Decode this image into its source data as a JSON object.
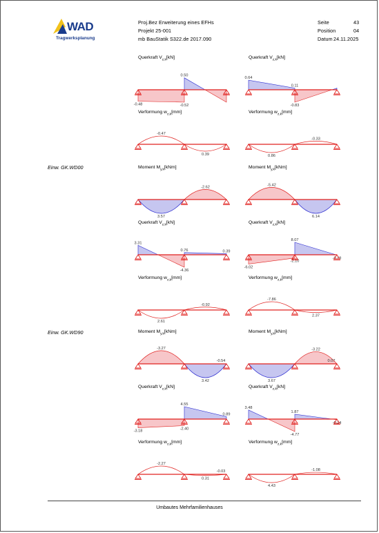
{
  "logo": {
    "name": "WAD",
    "subtitle": "Tragwerksplanung"
  },
  "header": {
    "line1": "Proj.Bez Erweiterung eines EFHs",
    "line2": "Projekt  25-001",
    "line3": "mb BauStatik S322.de  2017.090",
    "seite_label": "Seite",
    "seite_value": "43",
    "position_label": "Position",
    "position_value": "04",
    "datum_label": "Datum",
    "datum_value": "24.11.2025"
  },
  "sections": [
    {
      "label": "Einw. GK.WD00"
    },
    {
      "label": "Einw. GK.WD90"
    }
  ],
  "diagrams": [
    {
      "title": "Querkraft V",
      "sub": "z,k",
      "unit": "[kN]",
      "kind": "shear",
      "values": [
        -0.48,
        0.5,
        -0.52
      ]
    },
    {
      "title": "Querkraft V",
      "sub": "z,k",
      "unit": "[kN]",
      "kind": "shear",
      "values": [
        0.64,
        -0.83,
        0.11
      ]
    },
    {
      "title": "Verformung w",
      "sub": "z,k",
      "unit": "[mm]",
      "kind": "deflect",
      "values": [
        -0.47,
        0.39
      ]
    },
    {
      "title": "Verformung w",
      "sub": "z,k",
      "unit": "[mm]",
      "kind": "deflect",
      "values": [
        0.86,
        -0.33
      ]
    },
    {
      "title": "Moment M",
      "sub": "y,k",
      "unit": "[kNm]",
      "kind": "moment",
      "values": [
        3.57,
        -2.62
      ]
    },
    {
      "title": "Moment M",
      "sub": "y,k",
      "unit": "[kNm]",
      "kind": "moment",
      "values": [
        -5.42,
        6.14
      ]
    },
    {
      "title": "Querkraft V",
      "sub": "z,k",
      "unit": "[kN]",
      "kind": "shear",
      "values": [
        3.31,
        0.76,
        -4.36,
        0.39
      ]
    },
    {
      "title": "Querkraft V",
      "sub": "z,k",
      "unit": "[kN]",
      "kind": "shear",
      "values": [
        -6.02,
        8.07,
        -2.1,
        -0.19
      ]
    },
    {
      "title": "Verformung w",
      "sub": "z,k",
      "unit": "[mm]",
      "kind": "deflect",
      "values": [
        2.61,
        -0.92
      ]
    },
    {
      "title": "Verformung w",
      "sub": "z,k",
      "unit": "[mm]",
      "kind": "deflect",
      "values": [
        -7.86,
        2.37
      ]
    },
    {
      "title": "Moment M",
      "sub": "y,k",
      "unit": "[kNm]",
      "kind": "moment",
      "values": [
        -3.27,
        3.42,
        -0.54
      ]
    },
    {
      "title": "Moment M",
      "sub": "y,k",
      "unit": "[kNm]",
      "kind": "moment",
      "values": [
        3.67,
        -3.22,
        0.07
      ]
    },
    {
      "title": "Querkraft V",
      "sub": "z,k",
      "unit": "[kN]",
      "kind": "shear",
      "values": [
        -3.18,
        4.55,
        -2.4,
        0.89
      ]
    },
    {
      "title": "Querkraft V",
      "sub": "z,k",
      "unit": "[kN]",
      "kind": "shear",
      "values": [
        3.48,
        1.87,
        -4.77,
        -0.24
      ]
    },
    {
      "title": "Verformung w",
      "sub": "z,k",
      "unit": "[mm]",
      "kind": "deflect",
      "values": [
        -2.27,
        0.31,
        -0.03
      ]
    },
    {
      "title": "Verformung w",
      "sub": "z,k",
      "unit": "[mm]",
      "kind": "deflect",
      "values": [
        4.43,
        -1.08
      ]
    }
  ],
  "footer": {
    "text": "Umbautes Mehrfamilienhauses"
  },
  "colors": {
    "beam": "#e0201e",
    "blue": "#2a2ad0",
    "pos_fill": "#f7c6c9",
    "neg_fill": "#c6c6f0"
  }
}
